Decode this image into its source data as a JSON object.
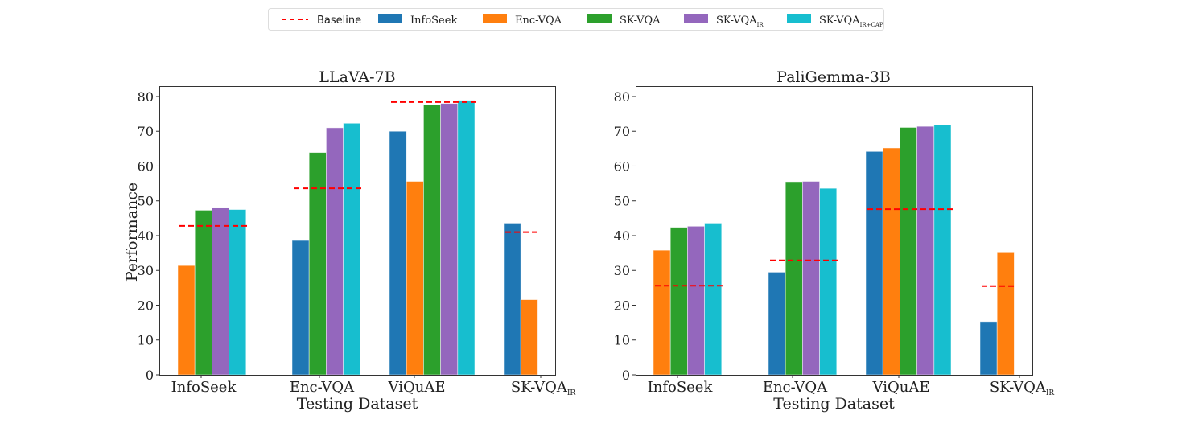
{
  "legend": {
    "placement": "top-center",
    "baseline_label": "Baseline",
    "items": [
      {
        "base": "InfoSeek",
        "sub": "",
        "color": "#1f77b4"
      },
      {
        "base": "Enc-VQA",
        "sub": "",
        "color": "#ff7f0e"
      },
      {
        "base": "SK-VQA",
        "sub": "",
        "color": "#2ca02c"
      },
      {
        "base": "SK-VQA",
        "sub": "IR",
        "color": "#9467bd"
      },
      {
        "base": "SK-VQA",
        "sub": "IR+CAP",
        "color": "#17becf"
      }
    ],
    "baseline_color": "#ff0000"
  },
  "chart_data": [
    {
      "type": "bar",
      "title": "LLaVA-7B",
      "xlabel": "Testing Dataset",
      "ylabel": "Performance",
      "ylim": [
        0,
        83
      ],
      "yticks": [
        0,
        10,
        20,
        30,
        40,
        50,
        60,
        70,
        80
      ],
      "grid": false,
      "categories": [
        {
          "base": "InfoSeek",
          "sub": ""
        },
        {
          "base": "Enc-VQA",
          "sub": ""
        },
        {
          "base": "ViQuAE",
          "sub": ""
        },
        {
          "base": "SK-VQA",
          "sub": "IR"
        }
      ],
      "series": [
        {
          "name": "InfoSeek",
          "values": [
            null,
            38.6,
            70.0,
            43.6
          ]
        },
        {
          "name": "Enc-VQA",
          "values": [
            31.4,
            null,
            55.6,
            21.6
          ]
        },
        {
          "name": "SK-VQA",
          "values": [
            47.3,
            63.9,
            77.6,
            null
          ]
        },
        {
          "name": "SK-VQA_IR",
          "values": [
            48.1,
            71.0,
            78.0,
            null
          ]
        },
        {
          "name": "SK-VQA_IR+CAP",
          "values": [
            47.5,
            72.3,
            78.9,
            null
          ]
        }
      ],
      "baseline": [
        42.8,
        53.6,
        78.4,
        41.0
      ]
    },
    {
      "type": "bar",
      "title": "PaliGemma-3B",
      "xlabel": "Testing Dataset",
      "ylabel": "",
      "ylim": [
        0,
        83
      ],
      "yticks": [
        0,
        10,
        20,
        30,
        40,
        50,
        60,
        70,
        80
      ],
      "grid": false,
      "categories": [
        {
          "base": "InfoSeek",
          "sub": ""
        },
        {
          "base": "Enc-VQA",
          "sub": ""
        },
        {
          "base": "ViQuAE",
          "sub": ""
        },
        {
          "base": "SK-VQA",
          "sub": "IR"
        }
      ],
      "series": [
        {
          "name": "InfoSeek",
          "values": [
            null,
            29.5,
            64.2,
            15.3
          ]
        },
        {
          "name": "Enc-VQA",
          "values": [
            35.8,
            null,
            65.2,
            35.3
          ]
        },
        {
          "name": "SK-VQA",
          "values": [
            42.4,
            55.5,
            71.1,
            null
          ]
        },
        {
          "name": "SK-VQA_IR",
          "values": [
            42.7,
            55.6,
            71.4,
            null
          ]
        },
        {
          "name": "SK-VQA_IR+CAP",
          "values": [
            43.6,
            53.6,
            71.9,
            null
          ]
        }
      ],
      "baseline": [
        25.6,
        32.9,
        47.6,
        25.5
      ]
    }
  ]
}
